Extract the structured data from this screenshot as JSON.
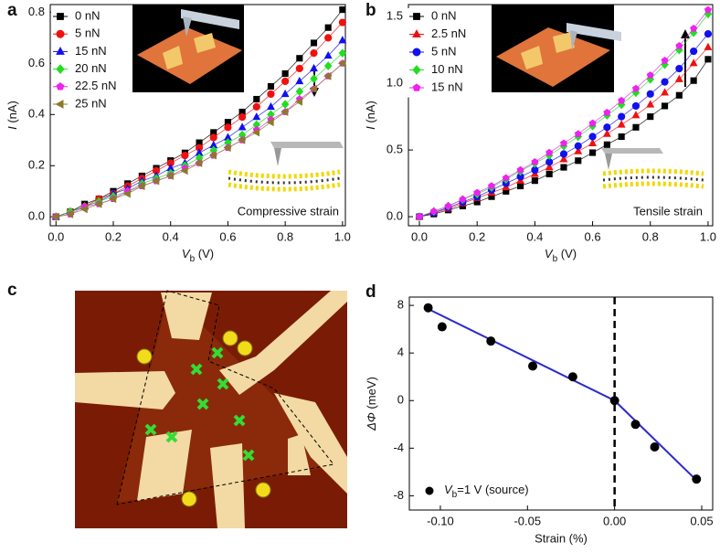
{
  "chart_data": [
    {
      "type": "line",
      "panel_label": "a",
      "x_label": {
        "var": "V",
        "sub": "b",
        "unit": " (V)"
      },
      "y_label": {
        "var": "I",
        "unit": " (nA)"
      },
      "annotation": "Compressive strain",
      "xlim": [
        -0.02,
        1.01
      ],
      "ylim": [
        -0.035,
        0.83
      ],
      "xticks": [
        {
          "value": 0,
          "label": "0.0"
        },
        0.2,
        0.4,
        0.6,
        0.8,
        {
          "value": 1,
          "label": "1.0"
        }
      ],
      "yticks": [
        {
          "value": 0,
          "label": "0.0"
        },
        0.2,
        0.4,
        0.6,
        0.8
      ],
      "x": [
        0,
        0.05,
        0.1,
        0.15,
        0.2,
        0.25,
        0.3,
        0.35,
        0.4,
        0.45,
        0.5,
        0.55,
        0.6,
        0.65,
        0.7,
        0.75,
        0.8,
        0.85,
        0.9,
        0.95,
        1
      ],
      "series": [
        {
          "name": "0 nN",
          "color": "#000000",
          "marker": "square",
          "values": [
            0,
            0.02,
            0.05,
            0.07,
            0.1,
            0.13,
            0.16,
            0.19,
            0.22,
            0.25,
            0.29,
            0.33,
            0.37,
            0.41,
            0.46,
            0.51,
            0.56,
            0.62,
            0.68,
            0.74,
            0.81
          ]
        },
        {
          "name": "5 nN",
          "color": "#ee1111",
          "marker": "circle",
          "values": [
            0,
            0.02,
            0.04,
            0.07,
            0.09,
            0.12,
            0.15,
            0.18,
            0.21,
            0.24,
            0.27,
            0.31,
            0.35,
            0.39,
            0.43,
            0.48,
            0.53,
            0.58,
            0.64,
            0.7,
            0.76
          ]
        },
        {
          "name": "15 nN",
          "color": "#1111ee",
          "marker": "triangle",
          "values": [
            0,
            0.02,
            0.04,
            0.06,
            0.09,
            0.11,
            0.14,
            0.16,
            0.19,
            0.21,
            0.25,
            0.28,
            0.31,
            0.35,
            0.39,
            0.43,
            0.48,
            0.53,
            0.58,
            0.63,
            0.69
          ]
        },
        {
          "name": "20 nN",
          "color": "#22dd22",
          "marker": "diamond",
          "values": [
            0,
            0.02,
            0.04,
            0.06,
            0.08,
            0.1,
            0.13,
            0.15,
            0.17,
            0.2,
            0.23,
            0.26,
            0.29,
            0.32,
            0.36,
            0.4,
            0.44,
            0.49,
            0.54,
            0.59,
            0.64
          ]
        },
        {
          "name": "22.5 nN",
          "color": "#ee22ee",
          "marker": "pentagon",
          "values": [
            0,
            0.01,
            0.04,
            0.05,
            0.07,
            0.1,
            0.12,
            0.14,
            0.16,
            0.19,
            0.21,
            0.24,
            0.27,
            0.3,
            0.34,
            0.38,
            0.41,
            0.46,
            0.5,
            0.55,
            0.6
          ]
        },
        {
          "name": "25 nN",
          "color": "#8b7a2a",
          "marker": "triangle-left",
          "values": [
            0,
            0.01,
            0.03,
            0.05,
            0.07,
            0.09,
            0.12,
            0.14,
            0.16,
            0.18,
            0.21,
            0.24,
            0.27,
            0.3,
            0.33,
            0.37,
            0.41,
            0.45,
            0.5,
            0.55,
            0.6
          ]
        }
      ]
    },
    {
      "type": "line",
      "panel_label": "b",
      "x_label": {
        "var": "V",
        "sub": "b",
        "unit": " (V)"
      },
      "y_label": {
        "var": "I",
        "unit": " (nA)"
      },
      "annotation": "Tensile strain",
      "xlim": [
        -0.038,
        1.016
      ],
      "ylim": [
        -0.068,
        1.59
      ],
      "xticks": [
        {
          "value": 0,
          "label": "0.0"
        },
        0.2,
        0.4,
        0.6,
        0.8,
        {
          "value": 1,
          "label": "1.0"
        }
      ],
      "yticks": [
        {
          "value": 0,
          "label": "0.0"
        },
        0.5,
        {
          "value": 1,
          "label": "1.0"
        },
        1.5
      ],
      "x": [
        0,
        0.05,
        0.1,
        0.15,
        0.2,
        0.25,
        0.3,
        0.35,
        0.4,
        0.45,
        0.5,
        0.55,
        0.6,
        0.65,
        0.7,
        0.75,
        0.8,
        0.85,
        0.9,
        0.95,
        1
      ],
      "series": [
        {
          "name": "0 nN",
          "color": "#000000",
          "marker": "square",
          "values": [
            0,
            0.02,
            0.05,
            0.08,
            0.11,
            0.15,
            0.19,
            0.23,
            0.27,
            0.32,
            0.37,
            0.42,
            0.48,
            0.54,
            0.6,
            0.67,
            0.75,
            0.83,
            0.91,
            1.02,
            1.18
          ]
        },
        {
          "name": "2.5 nN",
          "color": "#ee1111",
          "marker": "triangle",
          "values": [
            0,
            0.03,
            0.06,
            0.1,
            0.14,
            0.18,
            0.22,
            0.27,
            0.32,
            0.37,
            0.43,
            0.49,
            0.55,
            0.62,
            0.69,
            0.76,
            0.84,
            0.93,
            1.03,
            1.15,
            1.27
          ]
        },
        {
          "name": "5 nN",
          "color": "#1111ee",
          "marker": "circle",
          "values": [
            0,
            0.03,
            0.07,
            0.11,
            0.15,
            0.2,
            0.25,
            0.3,
            0.35,
            0.41,
            0.47,
            0.53,
            0.6,
            0.67,
            0.75,
            0.83,
            0.92,
            1.01,
            1.11,
            1.24,
            1.37
          ]
        },
        {
          "name": "10 nN",
          "color": "#22dd22",
          "marker": "diamond",
          "values": [
            0,
            0.04,
            0.08,
            0.13,
            0.17,
            0.22,
            0.28,
            0.34,
            0.4,
            0.46,
            0.53,
            0.6,
            0.68,
            0.76,
            0.84,
            0.93,
            1.03,
            1.14,
            1.25,
            1.38,
            1.52
          ]
        },
        {
          "name": "15 nN",
          "color": "#ee22ee",
          "marker": "pentagon",
          "values": [
            0,
            0.04,
            0.08,
            0.13,
            0.18,
            0.23,
            0.29,
            0.35,
            0.41,
            0.48,
            0.55,
            0.62,
            0.7,
            0.78,
            0.87,
            0.96,
            1.06,
            1.17,
            1.28,
            1.41,
            1.55
          ]
        }
      ]
    },
    {
      "type": "scatter",
      "panel_label": "d",
      "x_label": "Strain (%)",
      "y_label": {
        "var": "ΔΦ",
        "unit": " (meV)"
      },
      "xlim": [
        -0.1178,
        0.0563
      ],
      "ylim": [
        -9.2,
        8.7
      ],
      "xticks": [
        {
          "value": -0.1,
          "label": "-0.10"
        },
        {
          "value": -0.05,
          "label": "-0.05"
        },
        {
          "value": 0,
          "label": "0.00"
        },
        0.05
      ],
      "yticks": [
        -8,
        -4,
        0,
        4,
        8
      ],
      "vline": 0,
      "series": [
        {
          "color": "#2a2acc",
          "x": [
            -0.107,
            0,
            0.047
          ],
          "values": [
            7.7,
            0,
            -6.7
          ]
        },
        {
          "name": {
            "var": "V",
            "sub": "b",
            "rest": "=1 V (source)"
          },
          "color": "#000000",
          "marker": "circle",
          "x": [
            -0.107,
            -0.099,
            -0.071,
            -0.047,
            -0.024,
            0,
            0.012,
            0.023,
            0.047
          ],
          "values": [
            7.8,
            6.2,
            5.0,
            2.9,
            2.0,
            0,
            -2.0,
            -3.9,
            -6.6
          ]
        }
      ]
    }
  ],
  "image_panel": {
    "label": "c"
  }
}
